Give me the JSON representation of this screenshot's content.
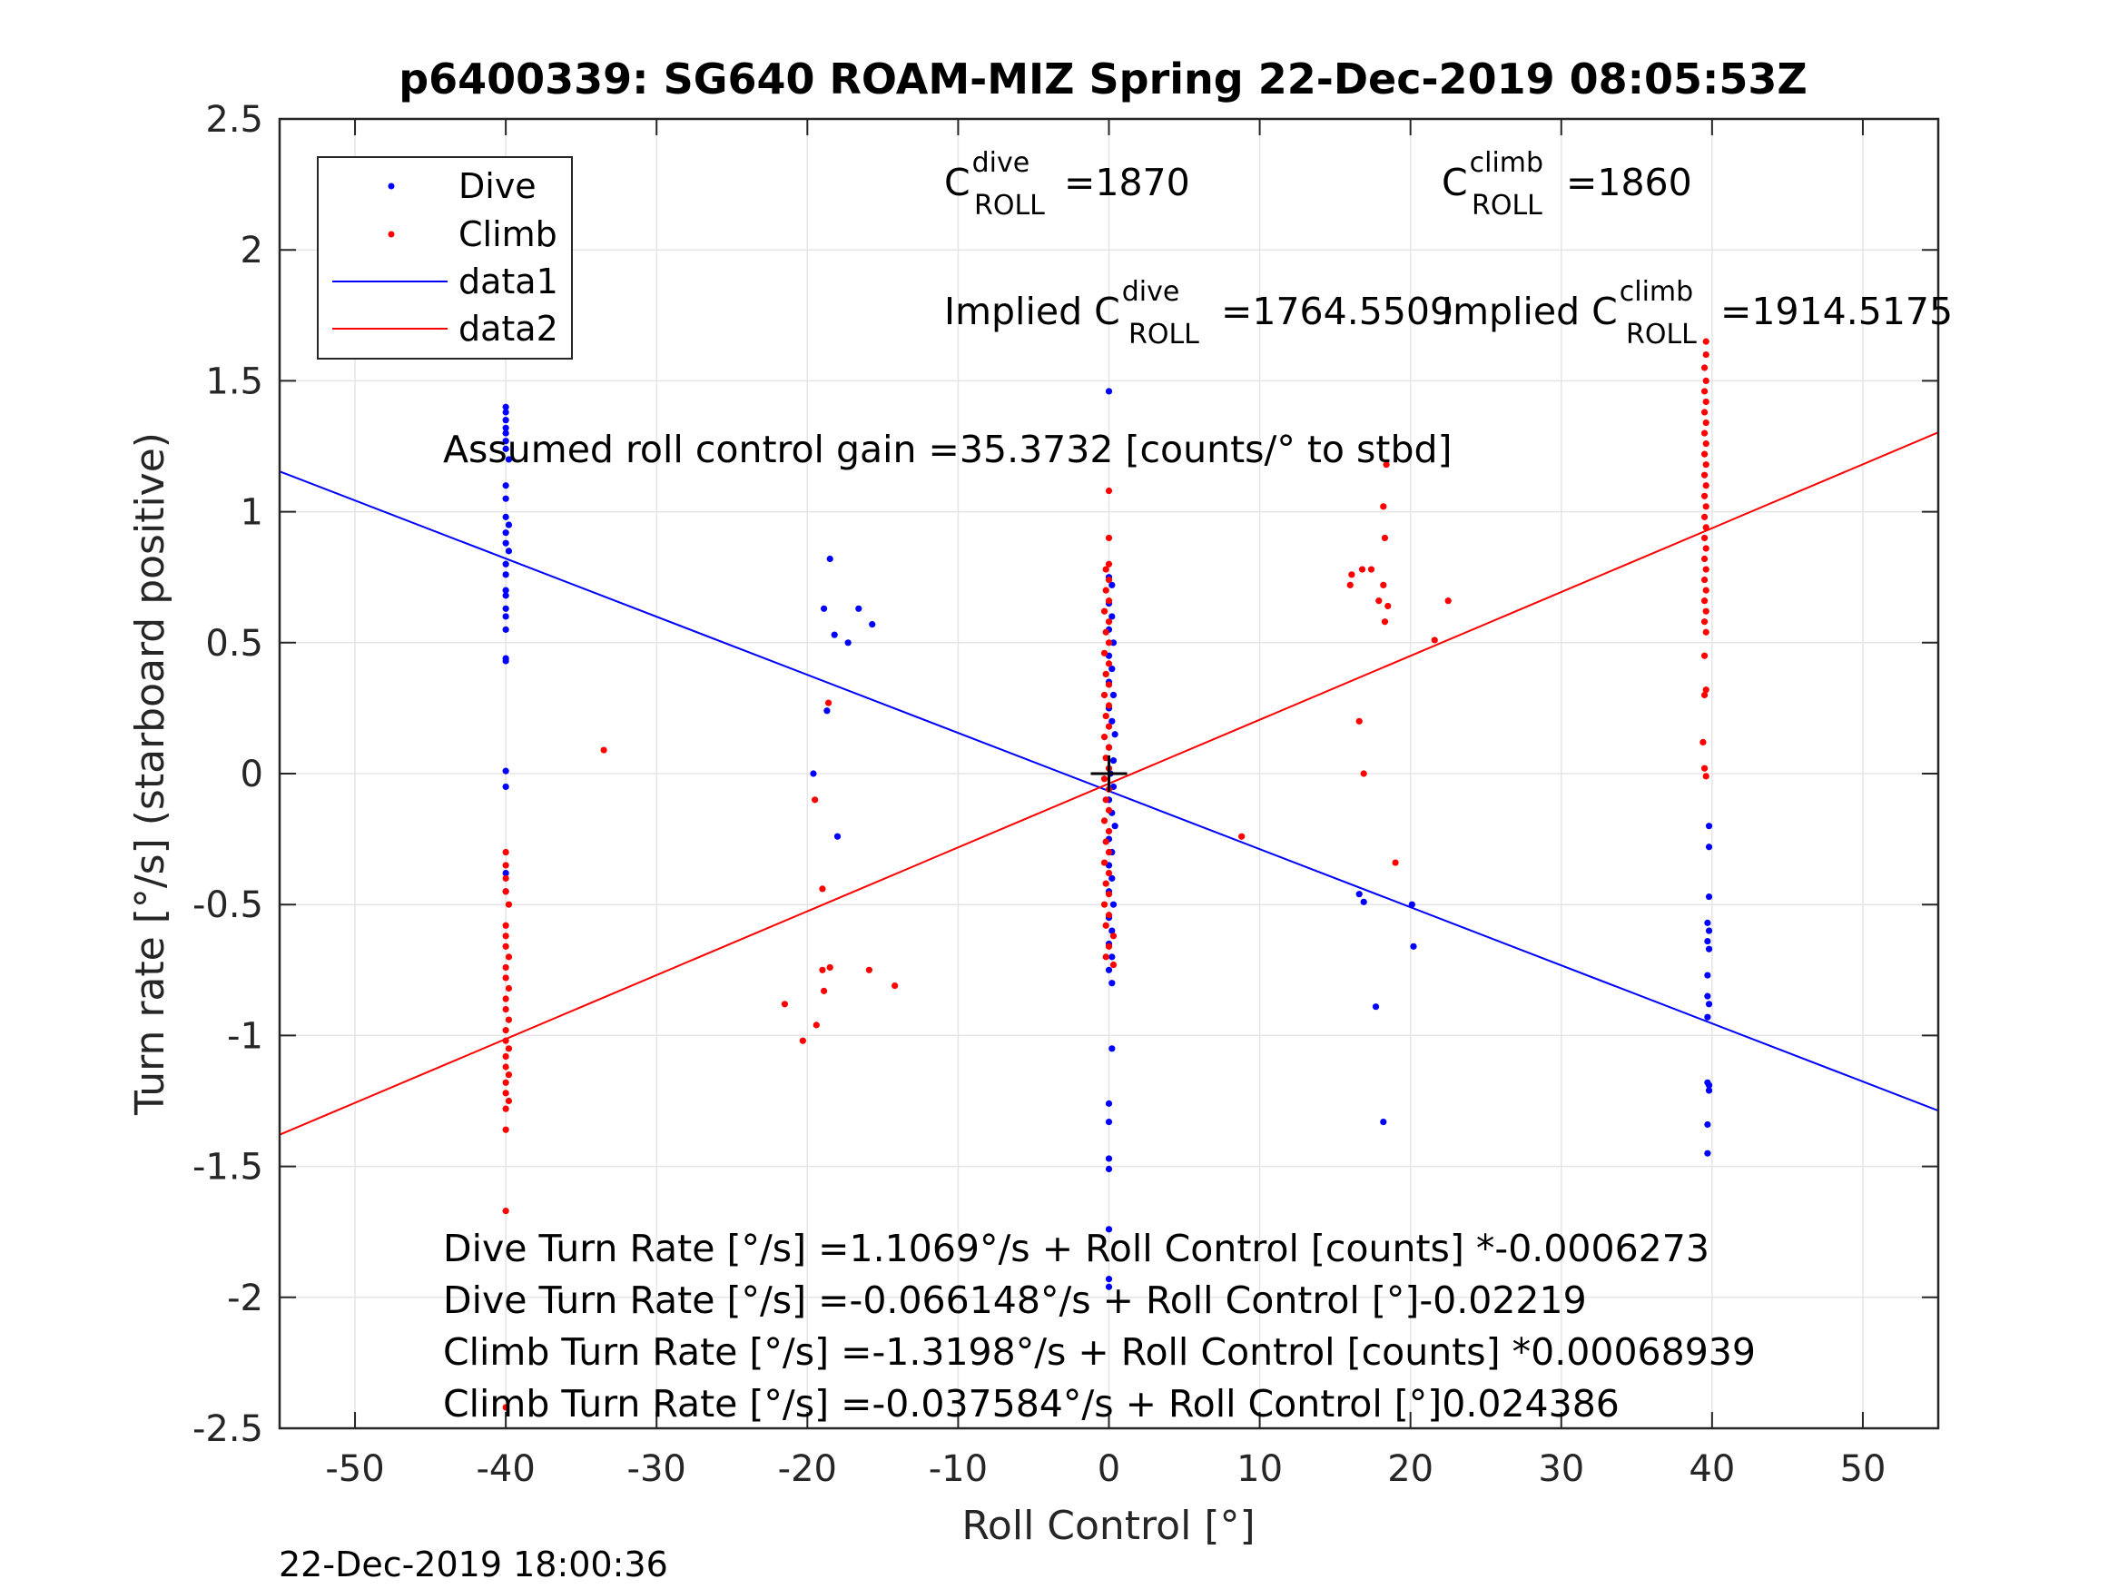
{
  "chart_data": {
    "type": "scatter",
    "title": "p6400339: SG640 ROAM-MIZ Spring 22-Dec-2019 08:05:53Z",
    "xlabel": "Roll Control [°]",
    "ylabel": "Turn rate [°/s] (starboard positive)",
    "xlim": [
      -55,
      55
    ],
    "ylim": [
      -2.5,
      2.5
    ],
    "xticks": [
      -50,
      -40,
      -30,
      -20,
      -10,
      0,
      10,
      20,
      30,
      40,
      50
    ],
    "xtick_labels": [
      "-50",
      "-40",
      "-30",
      "-20",
      "-10",
      "0",
      "10",
      "20",
      "30",
      "40",
      "50"
    ],
    "yticks": [
      2.5,
      2,
      1.5,
      1,
      0.5,
      0,
      -0.5,
      -1,
      -1.5,
      -2,
      -2.5
    ],
    "ytick_labels": [
      "2.5",
      "2",
      "1.5",
      "1",
      "0.5",
      "0",
      "-0.5",
      "-1",
      "-1.5",
      "-2",
      "-2.5"
    ],
    "grid": true,
    "legend_position": "top-left",
    "legend": [
      "Dive",
      "Climb",
      "data1",
      "data2"
    ],
    "colors": {
      "dive": "#0000ff",
      "climb": "#ff0000",
      "axis": "#262626",
      "grid": "#e5e5e5"
    },
    "series": [
      {
        "name": "Dive",
        "kind": "points",
        "color": "#0000ff",
        "points": [
          [
            -40,
            1.4
          ],
          [
            -40,
            1.38
          ],
          [
            -40,
            1.35
          ],
          [
            -40,
            1.32
          ],
          [
            -40,
            1.3
          ],
          [
            -40,
            1.27
          ],
          [
            -40,
            1.24
          ],
          [
            -39.8,
            1.2
          ],
          [
            -40,
            1.1
          ],
          [
            -40,
            1.05
          ],
          [
            -40,
            0.98
          ],
          [
            -39.8,
            0.95
          ],
          [
            -40,
            0.92
          ],
          [
            -40,
            0.88
          ],
          [
            -39.8,
            0.85
          ],
          [
            -40,
            0.8
          ],
          [
            -40,
            0.76
          ],
          [
            -40,
            0.7
          ],
          [
            -40,
            0.68
          ],
          [
            -40,
            0.63
          ],
          [
            -40,
            0.6
          ],
          [
            -40,
            0.55
          ],
          [
            -40,
            0.44
          ],
          [
            -40,
            0.43
          ],
          [
            -40,
            0.01
          ],
          [
            -40,
            -0.05
          ],
          [
            -40,
            -0.38
          ],
          [
            -40,
            -0.45
          ],
          [
            -18.5,
            0.82
          ],
          [
            -18.9,
            0.63
          ],
          [
            -18.2,
            0.53
          ],
          [
            -17.3,
            0.5
          ],
          [
            -16.6,
            0.63
          ],
          [
            -15.7,
            0.57
          ],
          [
            -18.7,
            0.24
          ],
          [
            -19.6,
            0.0
          ],
          [
            -18.0,
            -0.24
          ],
          [
            0,
            1.46
          ],
          [
            0,
            0.75
          ],
          [
            0.2,
            0.72
          ],
          [
            0,
            0.65
          ],
          [
            0.2,
            0.6
          ],
          [
            0,
            0.55
          ],
          [
            0.3,
            0.5
          ],
          [
            0,
            0.45
          ],
          [
            0.2,
            0.4
          ],
          [
            0,
            0.35
          ],
          [
            0.3,
            0.3
          ],
          [
            0,
            0.25
          ],
          [
            0.2,
            0.2
          ],
          [
            0.4,
            0.15
          ],
          [
            0,
            0.1
          ],
          [
            0.3,
            0.05
          ],
          [
            0.1,
            0.0
          ],
          [
            0.3,
            -0.05
          ],
          [
            0,
            -0.1
          ],
          [
            0.2,
            -0.15
          ],
          [
            0.4,
            -0.2
          ],
          [
            0,
            -0.25
          ],
          [
            0.2,
            -0.3
          ],
          [
            0,
            -0.35
          ],
          [
            0.2,
            -0.4
          ],
          [
            0,
            -0.45
          ],
          [
            0.3,
            -0.5
          ],
          [
            0,
            -0.55
          ],
          [
            0.2,
            -0.6
          ],
          [
            0,
            -0.65
          ],
          [
            0.2,
            -0.7
          ],
          [
            0,
            -0.75
          ],
          [
            0.2,
            -0.8
          ],
          [
            0.2,
            -1.05
          ],
          [
            0,
            -1.26
          ],
          [
            0,
            -1.33
          ],
          [
            0,
            -1.47
          ],
          [
            0,
            -1.51
          ],
          [
            0,
            -1.74
          ],
          [
            0,
            -1.93
          ],
          [
            0,
            -1.96
          ],
          [
            16.6,
            -0.46
          ],
          [
            16.9,
            -0.49
          ],
          [
            20.1,
            -0.5
          ],
          [
            20.2,
            -0.66
          ],
          [
            17.7,
            -0.89
          ],
          [
            18.2,
            -1.33
          ],
          [
            39.8,
            -0.2
          ],
          [
            39.8,
            -0.28
          ],
          [
            39.8,
            -0.47
          ],
          [
            39.7,
            -0.57
          ],
          [
            39.8,
            -0.6
          ],
          [
            39.7,
            -0.64
          ],
          [
            39.8,
            -0.67
          ],
          [
            39.7,
            -0.77
          ],
          [
            39.7,
            -0.85
          ],
          [
            39.8,
            -0.88
          ],
          [
            39.7,
            -0.93
          ],
          [
            39.7,
            -1.18
          ],
          [
            39.8,
            -1.19
          ],
          [
            39.8,
            -1.21
          ],
          [
            39.7,
            -1.34
          ],
          [
            39.7,
            -1.45
          ]
        ]
      },
      {
        "name": "Climb",
        "kind": "points",
        "color": "#ff0000",
        "points": [
          [
            -40,
            -0.3
          ],
          [
            -40,
            -0.35
          ],
          [
            -40,
            -0.4
          ],
          [
            -40,
            -0.45
          ],
          [
            -39.8,
            -0.5
          ],
          [
            -40,
            -0.58
          ],
          [
            -40,
            -0.62
          ],
          [
            -40,
            -0.66
          ],
          [
            -39.8,
            -0.7
          ],
          [
            -40,
            -0.74
          ],
          [
            -40,
            -0.78
          ],
          [
            -39.8,
            -0.82
          ],
          [
            -40,
            -0.86
          ],
          [
            -40,
            -0.9
          ],
          [
            -39.8,
            -0.94
          ],
          [
            -40,
            -0.98
          ],
          [
            -40,
            -1.02
          ],
          [
            -39.8,
            -1.05
          ],
          [
            -40,
            -1.08
          ],
          [
            -40,
            -1.12
          ],
          [
            -39.8,
            -1.15
          ],
          [
            -40,
            -1.18
          ],
          [
            -40,
            -1.22
          ],
          [
            -39.8,
            -1.25
          ],
          [
            -40,
            -1.28
          ],
          [
            -40,
            -1.36
          ],
          [
            -40,
            -1.67
          ],
          [
            -40,
            -2.42
          ],
          [
            -33.5,
            0.09
          ],
          [
            -18.6,
            0.27
          ],
          [
            -19.5,
            -0.1
          ],
          [
            -19.0,
            -0.44
          ],
          [
            -18.5,
            -0.74
          ],
          [
            -19.0,
            -0.75
          ],
          [
            -18.9,
            -0.83
          ],
          [
            -19.4,
            -0.96
          ],
          [
            -20.3,
            -1.02
          ],
          [
            -21.5,
            -0.88
          ],
          [
            -15.9,
            -0.75
          ],
          [
            -14.2,
            -0.81
          ],
          [
            0,
            1.08
          ],
          [
            0,
            0.9
          ],
          [
            0,
            0.8
          ],
          [
            -0.2,
            0.78
          ],
          [
            0,
            0.74
          ],
          [
            -0.2,
            0.7
          ],
          [
            0,
            0.66
          ],
          [
            -0.3,
            0.62
          ],
          [
            0,
            0.58
          ],
          [
            -0.2,
            0.54
          ],
          [
            0,
            0.5
          ],
          [
            -0.3,
            0.46
          ],
          [
            0,
            0.42
          ],
          [
            -0.2,
            0.38
          ],
          [
            0,
            0.34
          ],
          [
            -0.3,
            0.3
          ],
          [
            0,
            0.26
          ],
          [
            -0.2,
            0.22
          ],
          [
            0,
            0.18
          ],
          [
            -0.3,
            0.14
          ],
          [
            0,
            0.1
          ],
          [
            -0.2,
            0.06
          ],
          [
            0,
            0.02
          ],
          [
            -0.3,
            -0.02
          ],
          [
            0,
            -0.06
          ],
          [
            -0.2,
            -0.1
          ],
          [
            0,
            -0.14
          ],
          [
            -0.3,
            -0.18
          ],
          [
            0,
            -0.22
          ],
          [
            -0.2,
            -0.26
          ],
          [
            0,
            -0.3
          ],
          [
            -0.3,
            -0.34
          ],
          [
            0,
            -0.38
          ],
          [
            -0.2,
            -0.42
          ],
          [
            0,
            -0.46
          ],
          [
            -0.3,
            -0.5
          ],
          [
            0,
            -0.54
          ],
          [
            -0.2,
            -0.58
          ],
          [
            0.3,
            -0.62
          ],
          [
            0,
            -0.66
          ],
          [
            -0.2,
            -0.7
          ],
          [
            0.3,
            -0.73
          ],
          [
            8.8,
            -0.24
          ],
          [
            16.0,
            0.72
          ],
          [
            16.1,
            0.76
          ],
          [
            16.8,
            0.78
          ],
          [
            17.4,
            0.78
          ],
          [
            18.2,
            0.72
          ],
          [
            17.9,
            0.66
          ],
          [
            18.5,
            0.64
          ],
          [
            18.3,
            0.58
          ],
          [
            18.3,
            0.9
          ],
          [
            18.2,
            1.02
          ],
          [
            18.4,
            1.18
          ],
          [
            16.6,
            0.2
          ],
          [
            16.9,
            0.0
          ],
          [
            19.0,
            -0.34
          ],
          [
            21.6,
            0.51
          ],
          [
            22.5,
            0.66
          ],
          [
            39.6,
            1.65
          ],
          [
            39.6,
            1.6
          ],
          [
            39.5,
            1.55
          ],
          [
            39.6,
            1.5
          ],
          [
            39.5,
            1.46
          ],
          [
            39.6,
            1.42
          ],
          [
            39.5,
            1.38
          ],
          [
            39.6,
            1.34
          ],
          [
            39.5,
            1.3
          ],
          [
            39.6,
            1.26
          ],
          [
            39.5,
            1.22
          ],
          [
            39.6,
            1.18
          ],
          [
            39.5,
            1.14
          ],
          [
            39.6,
            1.1
          ],
          [
            39.5,
            1.06
          ],
          [
            39.6,
            1.02
          ],
          [
            39.5,
            0.98
          ],
          [
            39.6,
            0.94
          ],
          [
            39.5,
            0.9
          ],
          [
            39.6,
            0.86
          ],
          [
            39.5,
            0.82
          ],
          [
            39.6,
            0.78
          ],
          [
            39.5,
            0.74
          ],
          [
            39.6,
            0.7
          ],
          [
            39.5,
            0.66
          ],
          [
            39.6,
            0.62
          ],
          [
            39.5,
            0.58
          ],
          [
            39.6,
            0.54
          ],
          [
            39.5,
            0.45
          ],
          [
            39.6,
            0.32
          ],
          [
            39.5,
            0.3
          ],
          [
            39.4,
            0.12
          ],
          [
            39.5,
            0.02
          ],
          [
            39.6,
            -0.01
          ]
        ]
      },
      {
        "name": "data1",
        "kind": "line",
        "color": "#0000ff",
        "x": [
          -55,
          55
        ],
        "y": [
          1.154,
          -1.287
        ]
      },
      {
        "name": "data2",
        "kind": "line",
        "color": "#ff0000",
        "x": [
          -55,
          55
        ],
        "y": [
          -1.379,
          1.303
        ]
      }
    ],
    "center_marker": {
      "x": 0,
      "y": 0
    },
    "annotations": {
      "c_dive": {
        "base": "C",
        "sup": "dive",
        "sub": "ROLL",
        "value": "=1870"
      },
      "c_climb": {
        "base": "C",
        "sup": "climb",
        "sub": "ROLL",
        "value": "=1860"
      },
      "implied_dive": {
        "prefix": "Implied C",
        "sup": "dive",
        "sub": "ROLL",
        "value": "=1764.5509"
      },
      "implied_climb": {
        "prefix": "Implied C",
        "sup": "climb",
        "sub": "ROLL",
        "value": "=1914.5175"
      },
      "gain": "Assumed roll control gain =35.3732 [counts/° to stbd]",
      "fits": [
        "Dive Turn Rate [°/s] =1.1069°/s + Roll Control [counts] *-0.0006273",
        "Dive Turn Rate [°/s] =-0.066148°/s + Roll Control [°]-0.02219",
        "Climb Turn Rate [°/s] =-1.3198°/s + Roll Control [counts] *0.00068939",
        "Climb Turn Rate [°/s] =-0.037584°/s + Roll Control [°]0.024386"
      ]
    }
  },
  "footer_timestamp": "22-Dec-2019 18:00:36"
}
